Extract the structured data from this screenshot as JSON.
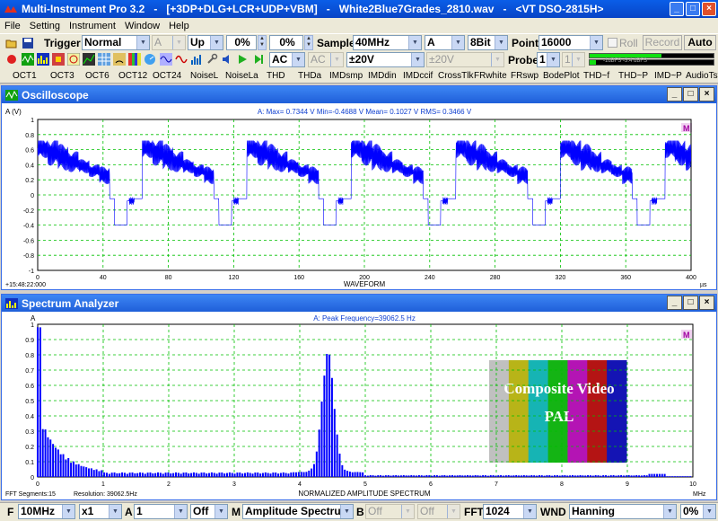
{
  "window": {
    "title": "Multi-Instrument Pro 3.2   -   [+3DP+DLG+LCR+UDP+VBM]   -   White2Blue7Grades_2810.wav   -   <VT DSO-2815H>"
  },
  "menu": [
    "File",
    "Setting",
    "Instrument",
    "Window",
    "Help"
  ],
  "toolbar": {
    "trigger_label": "Trigger",
    "trigger_mode": "Normal",
    "trigger_channel": "A",
    "trigger_edge": "Up",
    "trigger_level": "0%",
    "trigger_delay": "0%",
    "sample_label": "Sample",
    "sample_rate": "40MHz",
    "sample_channel": "A",
    "bits": "8Bit",
    "point_label": "Point",
    "points": "16000",
    "roll_label": "Roll",
    "record_label": "Record",
    "auto_label": "Auto",
    "coupling_a": "AC",
    "coupling_b": "AC",
    "range_a": "±20V",
    "range_b": "±20V",
    "probe_label": "Probe",
    "probe_a": "1",
    "probe_b": "1",
    "level_meter": "-1dBFS  -3.4 dBFS"
  },
  "analysis_buttons": [
    "OCT1",
    "OCT3",
    "OCT6",
    "OCT12",
    "OCT24",
    "NoiseL",
    "NoiseLa",
    "THD",
    "THDa",
    "IMDsmp",
    "IMDdin",
    "IMDccif",
    "CrossTlk",
    "FRwhite",
    "FRswp",
    "BodePlot",
    "THD~f",
    "THD~P",
    "IMD~P",
    "AudioTst"
  ],
  "oscilloscope": {
    "title": "Oscilloscope",
    "y_unit": "A (V)",
    "stats": "A: Max= 0.7344 V  Min=-0.4688 V  Mean= 0.1027 V  RMS= 0.3466 V",
    "y_ticks": [
      "1",
      "0.8",
      "0.6",
      "0.4",
      "0.2",
      "0",
      "-0.2",
      "-0.4",
      "-0.6",
      "-0.8",
      "-1"
    ],
    "x_ticks": [
      "0",
      "40",
      "80",
      "120",
      "160",
      "200",
      "240",
      "280",
      "320",
      "360",
      "400"
    ],
    "x_unit": "µs",
    "x_label": "WAVEFORM",
    "timestamp": "+15:48:22:000",
    "badge": "M"
  },
  "spectrum": {
    "title": "Spectrum Analyzer",
    "y_unit": "A",
    "peak": "A: Peak Frequency=39062.5 Hz",
    "y_ticks": [
      "1",
      "0.9",
      "0.8",
      "0.7",
      "0.6",
      "0.5",
      "0.4",
      "0.3",
      "0.2",
      "0.1",
      "0"
    ],
    "x_ticks": [
      "0",
      "1",
      "2",
      "3",
      "4",
      "5",
      "6",
      "7",
      "8",
      "9",
      "10"
    ],
    "x_unit": "MHz",
    "x_label": "NORMALIZED AMPLITUDE SPECTRUM",
    "segments": "FFT Segments:15",
    "resolution": "Resolution: 39062.5Hz",
    "overlay_line1": "Composite Video",
    "overlay_line2": "PAL",
    "overlay_colors": [
      "#c0c0c0",
      "#b8b418",
      "#16b4b4",
      "#14b414",
      "#b414b4",
      "#b41414",
      "#1414b4"
    ],
    "badge": "M"
  },
  "status": {
    "f_label": "F",
    "freq": "10MHz",
    "mult": "x1",
    "a_label": "A",
    "a_ch": "1",
    "a_off": "Off",
    "m_label": "M",
    "mode": "Amplitude Spectrum",
    "b_label": "B",
    "b_off1": "Off",
    "b_off2": "Off",
    "fft_label": "FFT",
    "fft": "1024",
    "wnd_label": "WND",
    "window_fn": "Hanning",
    "overlap": "0%"
  },
  "colors": {
    "trace": "#0000ff",
    "grid": "#00c000",
    "title_blue": "#1f5fd9"
  }
}
